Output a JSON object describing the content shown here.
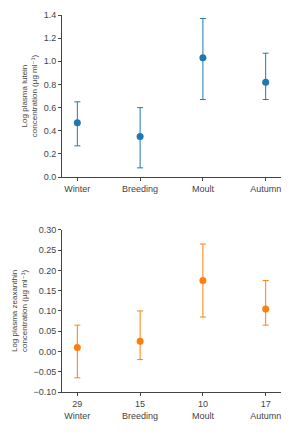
{
  "chart_data": [
    {
      "type": "scatter",
      "marker": "circle",
      "grid": false,
      "categories": [
        "Winter",
        "Breeding",
        "Moult",
        "Autumn"
      ],
      "values": [
        0.47,
        0.35,
        1.03,
        0.82
      ],
      "yerr_lower": [
        0.2,
        0.27,
        0.36,
        0.15
      ],
      "yerr_upper": [
        0.18,
        0.25,
        0.34,
        0.25
      ],
      "ylabel": "Log plasma lutein concentration (µg ml⁻¹)",
      "ylim": [
        0.0,
        1.4
      ],
      "yticks": [
        {
          "value": 0.0,
          "label": "0.0"
        },
        0.2,
        0.4,
        0.6,
        0.8,
        {
          "value": 1.0,
          "label": "1.0"
        },
        1.2,
        1.4
      ]
    },
    {
      "type": "scatter",
      "marker": "circle",
      "grid": false,
      "categories": [
        "Winter",
        "Breeding",
        "Moult",
        "Autumn"
      ],
      "sample_sizes": [
        29,
        15,
        10,
        17
      ],
      "values": [
        0.01,
        0.025,
        0.175,
        0.105
      ],
      "yerr_lower": [
        0.075,
        0.045,
        0.09,
        0.04
      ],
      "yerr_upper": [
        0.055,
        0.075,
        0.09,
        0.07
      ],
      "ylabel": "Log plasma zeaxanthin concentration (µg ml⁻¹)",
      "ylim": [
        -0.1,
        0.3
      ],
      "yticks": [
        {
          "value": -0.1,
          "label": "−0.10"
        },
        {
          "value": -0.05,
          "label": "−0.05"
        },
        {
          "value": 0.0,
          "label": "0.00"
        },
        0.05,
        {
          "value": 0.1,
          "label": "0.10"
        },
        0.15,
        {
          "value": 0.2,
          "label": "0.20"
        },
        0.25,
        {
          "value": 0.3,
          "label": "0.30"
        }
      ]
    }
  ]
}
